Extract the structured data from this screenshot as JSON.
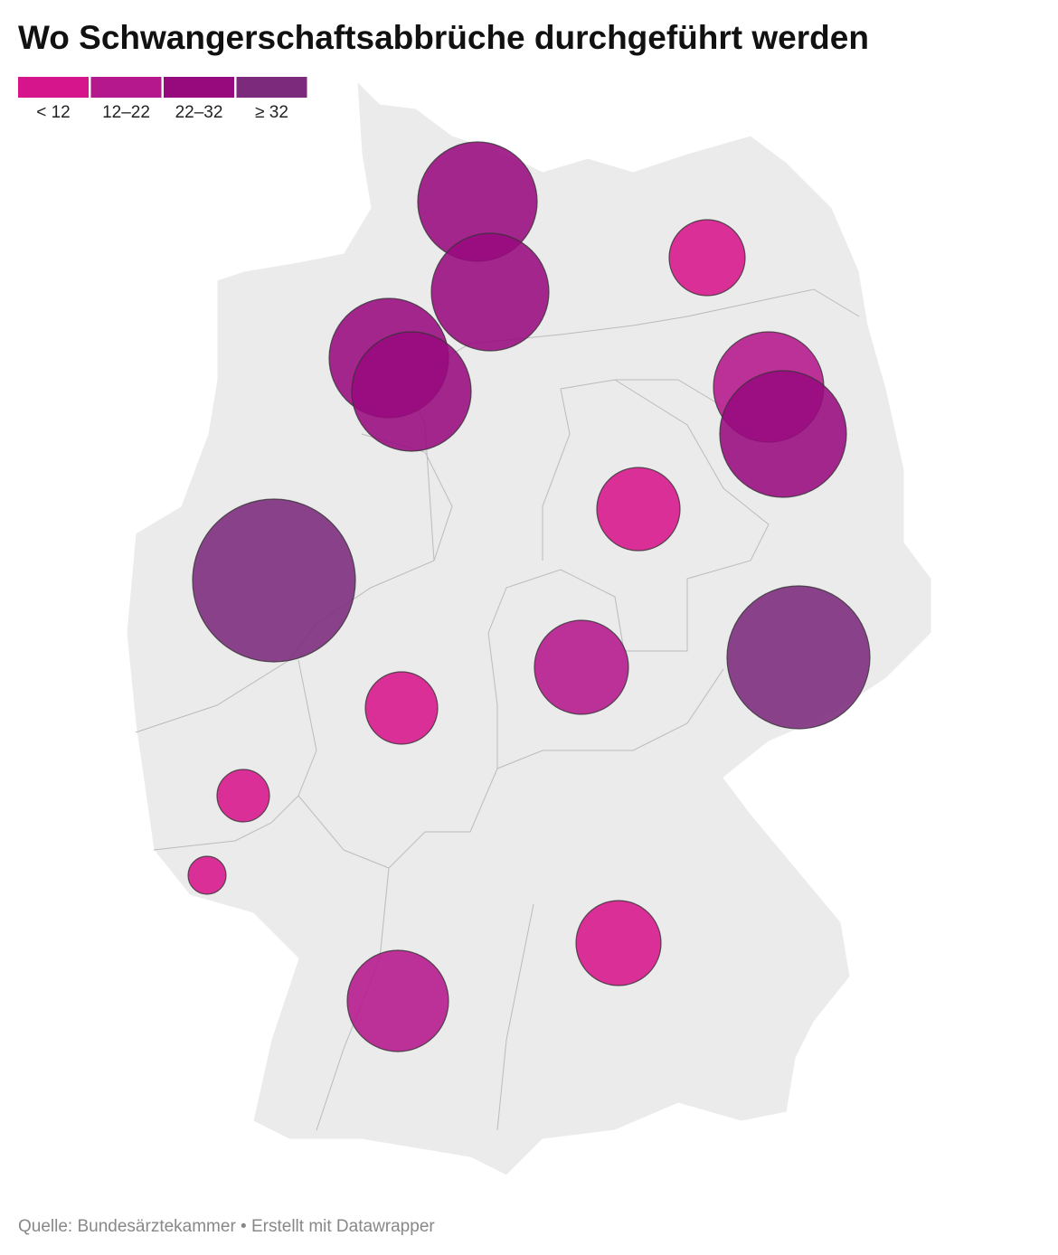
{
  "title": "Wo Schwangerschaftsabbrüche durchgeführt werden",
  "legend": [
    {
      "label": "< 12",
      "color": "#d6148b"
    },
    {
      "label": "12–22",
      "color": "#b5178c"
    },
    {
      "label": "22–32",
      "color": "#970a7e"
    },
    {
      "label": "≥ 32",
      "color": "#7b2a7c"
    }
  ],
  "source": "Quelle: Bundesärztekammer • Erstellt mit Datawrapper"
}
